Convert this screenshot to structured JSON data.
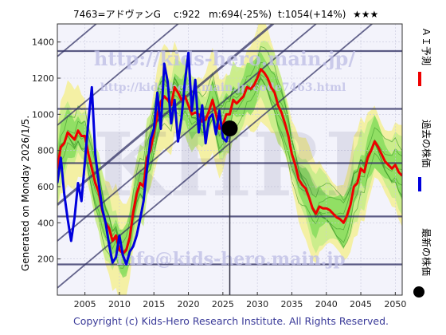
{
  "header": {
    "code_name": "7463=アドヴァンG",
    "current": "c:922",
    "mid": "m:694(-25%)",
    "target": "t:1054(+14%)",
    "stars": "★★★"
  },
  "side_labels": {
    "generated": "Generated on Monday 2026/1/5.",
    "ai_forecast": "ＡＩ予測",
    "past_price": "過去の株価",
    "latest_price": "最新の株価"
  },
  "watermarks": {
    "main": "KHRI",
    "url1": "http://kids-hero.main.jp/",
    "url2": "http://kids-hero.main.jp/code7463.html",
    "email": "info@kids-hero.main.jp"
  },
  "footer": "Copyright (c) Kids-Hero Research Institute. All Rights Reserved.",
  "colors": {
    "forecast": "#ee0000",
    "past": "#0000dd",
    "band_green": "#7ed957",
    "band_yellow": "#f4f09a",
    "frame": "#333366"
  },
  "chart_data": {
    "type": "line",
    "xlim": [
      2001,
      2051
    ],
    "ylim": [
      0,
      1500
    ],
    "x_ticks": [
      2005,
      2010,
      2015,
      2020,
      2025,
      2030,
      2035,
      2040,
      2045,
      2050
    ],
    "y_ticks": [
      200,
      400,
      600,
      800,
      1000,
      1200,
      1400
    ],
    "h_lines": [
      1350,
      1030,
      730,
      435,
      170
    ],
    "marker": {
      "x": 2026.0,
      "y": 922
    },
    "series": [
      {
        "name": "過去の株価",
        "x": [
          2001,
          2001.5,
          2002,
          2002.5,
          2003,
          2003.5,
          2004,
          2004.5,
          2005,
          2005.5,
          2006,
          2006.5,
          2007,
          2007.5,
          2008,
          2008.5,
          2009,
          2009.5,
          2010,
          2010.5,
          2011,
          2011.5,
          2012,
          2012.5,
          2013,
          2013.5,
          2014,
          2014.5,
          2015,
          2015.5,
          2016,
          2016.5,
          2017,
          2017.5,
          2018,
          2018.5,
          2019,
          2019.5,
          2020,
          2020.5,
          2021,
          2021.5,
          2022,
          2022.5,
          2023,
          2023.5,
          2024,
          2024.5,
          2025,
          2025.5,
          2026
        ],
        "y": [
          620,
          760,
          560,
          420,
          300,
          430,
          620,
          520,
          740,
          960,
          1150,
          780,
          620,
          480,
          400,
          280,
          180,
          210,
          330,
          220,
          170,
          240,
          270,
          330,
          420,
          520,
          700,
          860,
          920,
          1120,
          920,
          1280,
          1180,
          950,
          1080,
          850,
          980,
          1180,
          1340,
          1020,
          1190,
          900,
          1050,
          840,
          980,
          1000,
          890,
          1020,
          870,
          850,
          922
        ]
      },
      {
        "name": "ＡＩ予測",
        "x": [
          2001,
          2001.5,
          2002,
          2002.5,
          2003,
          2003.5,
          2004,
          2004.5,
          2005,
          2005.5,
          2006,
          2006.5,
          2007,
          2007.5,
          2008,
          2008.5,
          2009,
          2009.5,
          2010,
          2010.5,
          2011,
          2011.5,
          2012,
          2012.5,
          2013,
          2013.5,
          2014,
          2014.5,
          2015,
          2015.5,
          2016,
          2016.5,
          2017,
          2017.5,
          2018,
          2018.5,
          2019,
          2019.5,
          2020,
          2020.5,
          2021,
          2021.5,
          2022,
          2022.5,
          2023,
          2023.5,
          2024,
          2024.5,
          2025,
          2025.5,
          2026,
          2026.5,
          2027,
          2027.5,
          2028,
          2028.5,
          2029,
          2029.5,
          2030,
          2030.5,
          2031,
          2031.5,
          2032,
          2032.5,
          2033,
          2033.5,
          2034,
          2034.5,
          2035,
          2035.5,
          2036,
          2036.5,
          2037,
          2037.5,
          2038,
          2038.5,
          2039,
          2039.5,
          2040,
          2040.5,
          2041,
          2041.5,
          2042,
          2042.5,
          2043,
          2043.5,
          2044,
          2044.5,
          2045,
          2045.5,
          2046,
          2046.5,
          2047,
          2047.5,
          2048,
          2048.5,
          2049,
          2049.5,
          2050,
          2050.5,
          2051
        ],
        "y": [
          700,
          820,
          840,
          900,
          880,
          860,
          910,
          880,
          880,
          780,
          700,
          620,
          570,
          470,
          400,
          370,
          300,
          330,
          250,
          230,
          250,
          320,
          460,
          560,
          620,
          600,
          760,
          800,
          900,
          1000,
          1070,
          1100,
          1080,
          1050,
          1150,
          1120,
          1080,
          1100,
          1050,
          1000,
          1010,
          1000,
          960,
          970,
          1020,
          1080,
          1000,
          920,
          940,
          1000,
          1000,
          1080,
          1060,
          1080,
          1100,
          1150,
          1140,
          1160,
          1200,
          1250,
          1230,
          1200,
          1150,
          1120,
          1050,
          1010,
          950,
          880,
          780,
          720,
          640,
          610,
          590,
          540,
          480,
          450,
          490,
          480,
          480,
          470,
          450,
          430,
          420,
          400,
          440,
          500,
          600,
          620,
          700,
          680,
          760,
          800,
          850,
          820,
          780,
          740,
          720,
          700,
          720,
          680,
          660
        ]
      }
    ]
  }
}
